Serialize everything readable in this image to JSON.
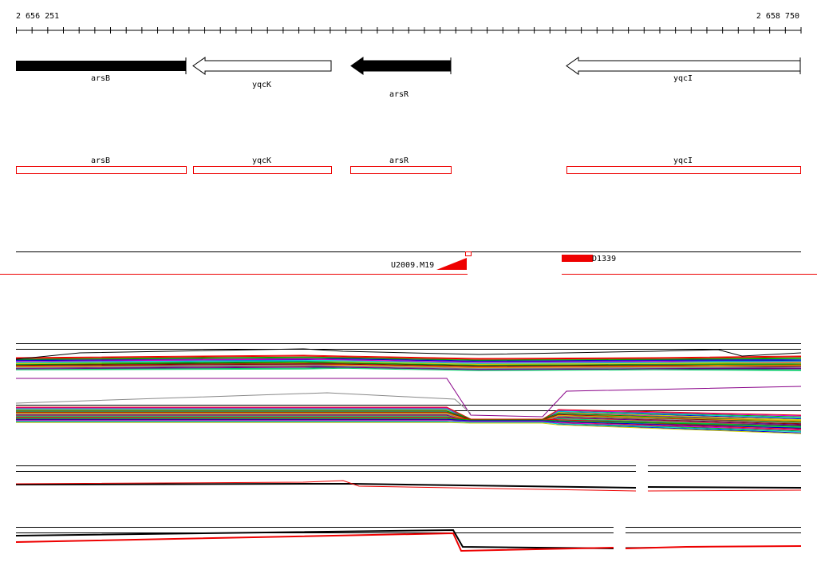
{
  "ruler": {
    "start": "2 656 251",
    "end": "2 658 750"
  },
  "genes": [
    {
      "label": "arsB"
    },
    {
      "label": "yqcK"
    },
    {
      "label": "arsR"
    },
    {
      "label": "yqcI"
    }
  ],
  "annotations": [
    {
      "label": "arsB"
    },
    {
      "label": "yqcK"
    },
    {
      "label": "arsR"
    },
    {
      "label": "yqcI"
    }
  ],
  "features": [
    {
      "label": "U2009.M19"
    },
    {
      "label": "D1339"
    }
  ]
}
